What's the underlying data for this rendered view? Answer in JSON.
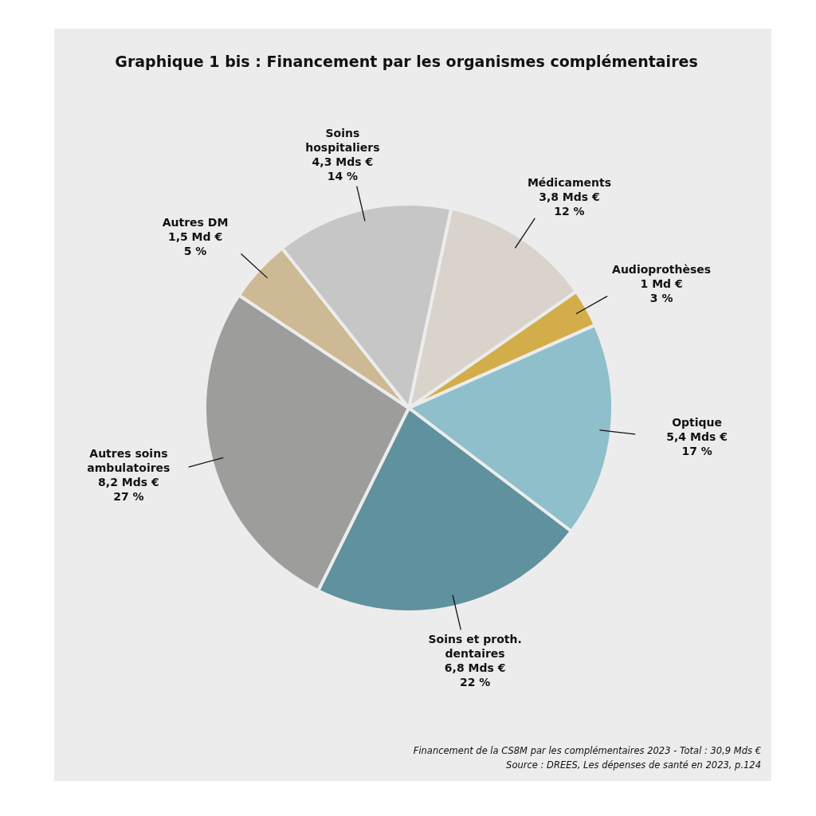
{
  "chart_data": {
    "type": "pie",
    "title": "Graphique 1 bis : Financement par les organismes complémentaires",
    "categories": [
      "Médicaments",
      "Audioprothèses",
      "Optique",
      "Soins et proth. dentaires",
      "Autres soins ambulatoires",
      "Autres DM",
      "Soins hospitaliers"
    ],
    "values": [
      12,
      3,
      17,
      22,
      27,
      5,
      14
    ],
    "value_labels": [
      "3,8 Mds €\n12 %",
      "1 Md €\n3 %",
      "5,4 Mds €\n17 %",
      "6,8 Mds €\n22 %",
      "8,2 Mds €\n27 %",
      "1,5 Md €\n5 %",
      "4,3 Mds €\n14 %"
    ],
    "colors": [
      "#d9d3cc",
      "#d4ad4b",
      "#8fbfca",
      "#5f919e",
      "#9d9d9b",
      "#cdb993",
      "#c6c6c6"
    ],
    "annotations": [
      "Financement de la CS8M par les complémentaires 2023 - Total : 30,9 Mds €",
      "Source : DREES, Les dépenses de santé en 2023, p.124"
    ]
  }
}
